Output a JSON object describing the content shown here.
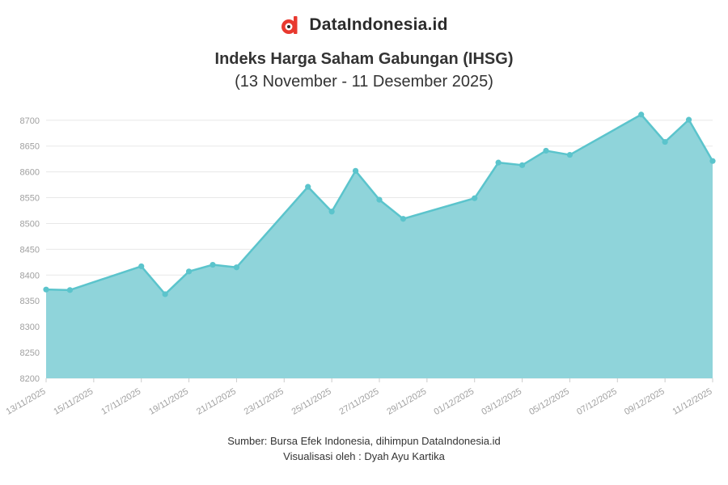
{
  "brand": {
    "name": "DataIndonesia.id",
    "logo_icon": "dataindonesia-logo-icon",
    "logo_color": "#e8392f"
  },
  "chart_data": {
    "type": "area",
    "title": "Indeks Harga Saham Gabungan (IHSG)",
    "subtitle": "(13 November - 11 Desember 2025)",
    "x": [
      "2025-11-13",
      "2025-11-14",
      "2025-11-17",
      "2025-11-18",
      "2025-11-19",
      "2025-11-20",
      "2025-11-21",
      "2025-11-24",
      "2025-11-25",
      "2025-11-26",
      "2025-11-27",
      "2025-11-28",
      "2025-12-01",
      "2025-12-02",
      "2025-12-03",
      "2025-12-04",
      "2025-12-05",
      "2025-12-08",
      "2025-12-09",
      "2025-12-10",
      "2025-12-11"
    ],
    "values": [
      8372,
      8371,
      8417,
      8363,
      8407,
      8420,
      8415,
      8571,
      8523,
      8602,
      8546,
      8509,
      8549,
      8618,
      8613,
      8641,
      8633,
      8711,
      8658,
      8701,
      8621
    ],
    "x_tick_labels": [
      "13/11/2025",
      "15/11/2025",
      "17/11/2025",
      "19/11/2025",
      "21/11/2025",
      "23/11/2025",
      "25/11/2025",
      "27/11/2025",
      "29/11/2025",
      "01/12/2025",
      "03/12/2025",
      "05/12/2025",
      "07/12/2025",
      "09/12/2025",
      "11/12/2025"
    ],
    "x_range": [
      "2025-11-13",
      "2025-12-11"
    ],
    "ylim": [
      8200,
      8720
    ],
    "yticks": [
      8200,
      8250,
      8300,
      8350,
      8400,
      8450,
      8500,
      8550,
      8600,
      8650,
      8700
    ],
    "grid": true,
    "legend": "none",
    "xlabel": "",
    "ylabel": "",
    "colors": {
      "fill": "#8fd4da",
      "line": "#5bc4cc",
      "marker": "#5bc4cc",
      "grid": "#e8e8e8",
      "tick_text": "#a0a0a0"
    }
  },
  "footer": {
    "source": "Sumber: Bursa Efek Indonesia, dihimpun DataIndonesia.id",
    "credit": "Visualisasi oleh : Dyah Ayu Kartika"
  }
}
